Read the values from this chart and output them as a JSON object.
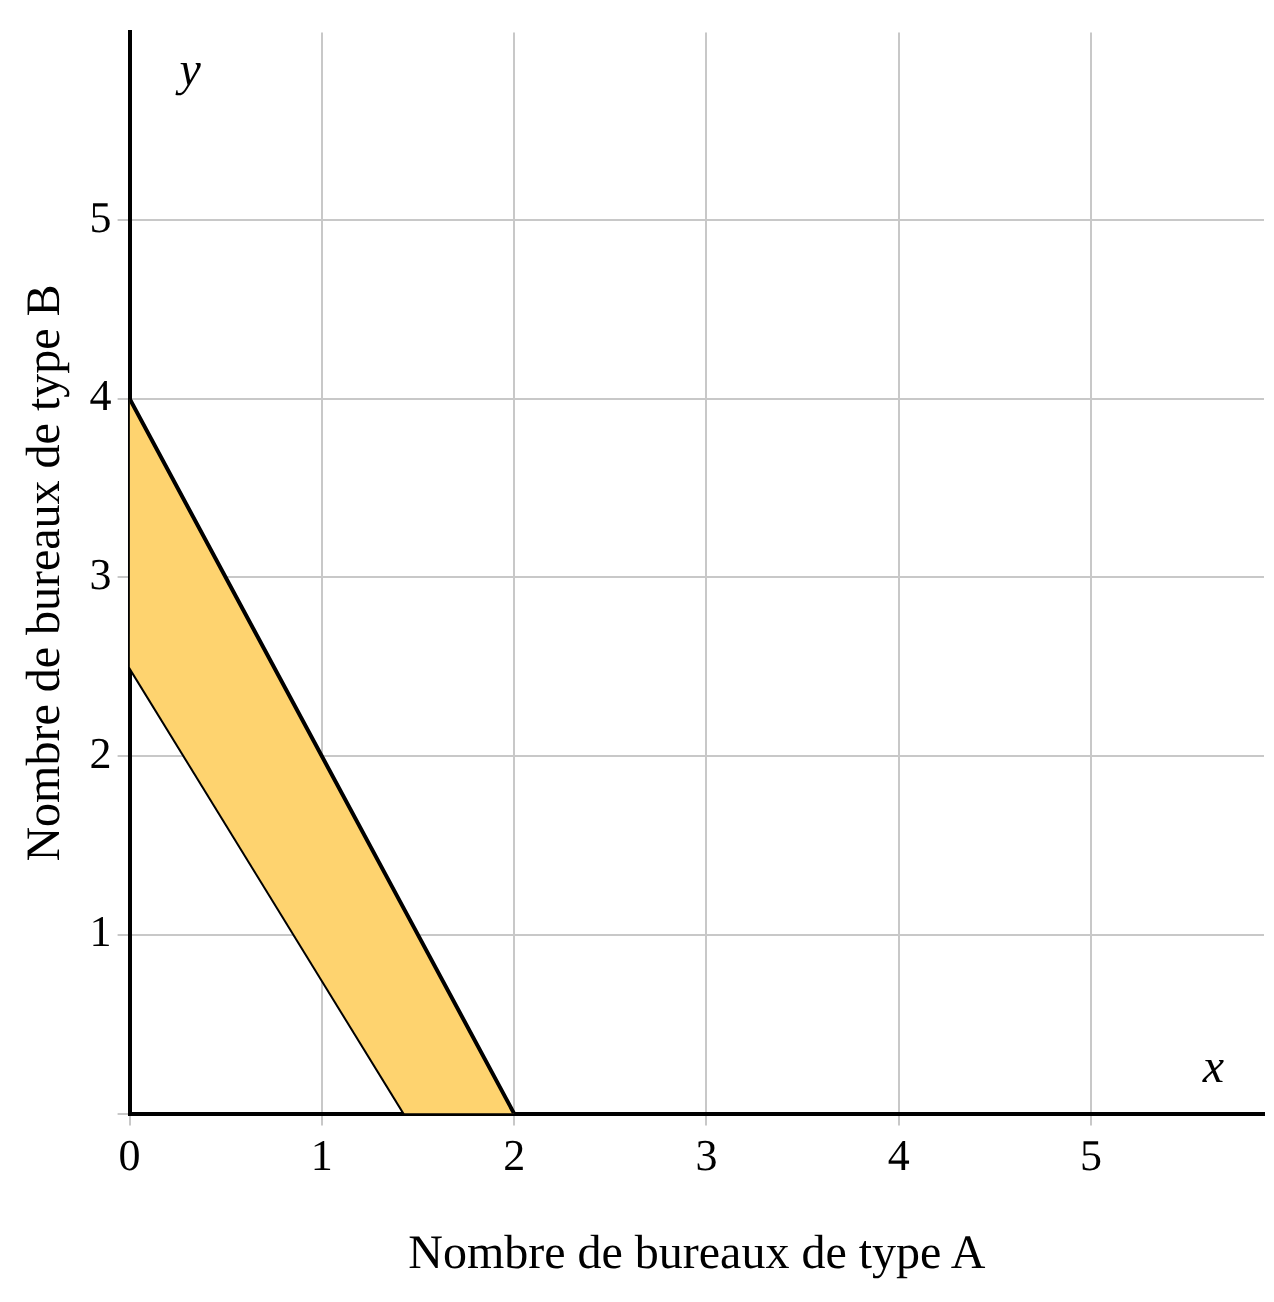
{
  "chart_data": {
    "type": "line",
    "xlabel": "Nombre de bureaux de type A",
    "ylabel": "Nombre de bureaux de type B",
    "annotations": [
      "x",
      "y"
    ],
    "series": [
      {
        "type": "line",
        "color": "#000000",
        "x": [
          0,
          1.43,
          2
        ],
        "values": [
          2.5,
          0,
          0
        ]
      },
      {
        "type": "area",
        "color": "#fed36f",
        "x": [
          0,
          1.43,
          2
        ],
        "values": [
          4,
          1.14,
          0
        ]
      }
    ],
    "xlim": [
      0,
      5.9
    ],
    "ylim": [
      0,
      6.05
    ],
    "xticks": [
      0,
      1,
      2,
      3,
      4,
      5
    ],
    "yticks": [
      {
        "value": 0,
        "label": null
      },
      1,
      2,
      3,
      4,
      5
    ],
    "grid": true,
    "marker": "none",
    "line_style": "solid"
  }
}
